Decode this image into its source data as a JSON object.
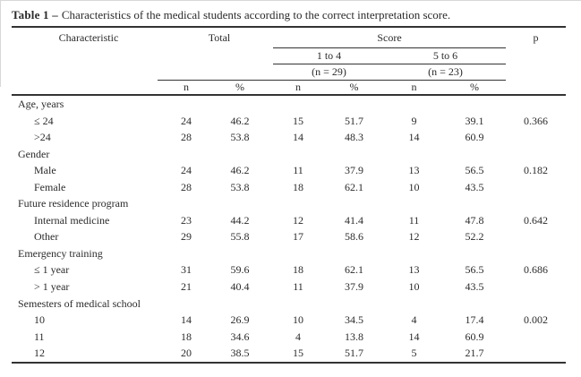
{
  "page": {
    "background": "#ffffff",
    "edge_border_color": "#d8d8d8",
    "rule_color": "#333333",
    "text_color": "#2b2b2b"
  },
  "title": {
    "label_bold": "Table 1 –",
    "text": "Characteristics of the medical students according to the correct interpretation score."
  },
  "table": {
    "header": {
      "characteristic": "Characteristic",
      "total": "Total",
      "score": "Score",
      "p": "p",
      "score_columns": [
        {
          "range": "1 to 4",
          "n": "(n = 29)"
        },
        {
          "range": "5 to 6",
          "n": "(n = 23)"
        }
      ],
      "subheaders": [
        "n",
        "%",
        "n",
        "%",
        "n",
        "%"
      ]
    },
    "groups": [
      {
        "label": "Age, years",
        "rows": [
          {
            "label": "≤ 24",
            "total_n": "24",
            "total_pct": "46.2",
            "s14_n": "15",
            "s14_pct": "51.7",
            "s56_n": "9",
            "s56_pct": "39.1",
            "p": "0.366"
          },
          {
            "label": ">24",
            "total_n": "28",
            "total_pct": "53.8",
            "s14_n": "14",
            "s14_pct": "48.3",
            "s56_n": "14",
            "s56_pct": "60.9",
            "p": ""
          }
        ]
      },
      {
        "label": "Gender",
        "rows": [
          {
            "label": "Male",
            "total_n": "24",
            "total_pct": "46.2",
            "s14_n": "11",
            "s14_pct": "37.9",
            "s56_n": "13",
            "s56_pct": "56.5",
            "p": "0.182"
          },
          {
            "label": "Female",
            "total_n": "28",
            "total_pct": "53.8",
            "s14_n": "18",
            "s14_pct": "62.1",
            "s56_n": "10",
            "s56_pct": "43.5",
            "p": ""
          }
        ]
      },
      {
        "label": "Future residence program",
        "rows": [
          {
            "label": "Internal medicine",
            "total_n": "23",
            "total_pct": "44.2",
            "s14_n": "12",
            "s14_pct": "41.4",
            "s56_n": "11",
            "s56_pct": "47.8",
            "p": "0.642"
          },
          {
            "label": "Other",
            "total_n": "29",
            "total_pct": "55.8",
            "s14_n": "17",
            "s14_pct": "58.6",
            "s56_n": "12",
            "s56_pct": "52.2",
            "p": ""
          }
        ]
      },
      {
        "label": "Emergency training",
        "rows": [
          {
            "label": "≤ 1 year",
            "total_n": "31",
            "total_pct": "59.6",
            "s14_n": "18",
            "s14_pct": "62.1",
            "s56_n": "13",
            "s56_pct": "56.5",
            "p": "0.686"
          },
          {
            "label": "> 1 year",
            "total_n": "21",
            "total_pct": "40.4",
            "s14_n": "11",
            "s14_pct": "37.9",
            "s56_n": "10",
            "s56_pct": "43.5",
            "p": ""
          }
        ]
      },
      {
        "label": "Semesters of medical school",
        "rows": [
          {
            "label": "10",
            "total_n": "14",
            "total_pct": "26.9",
            "s14_n": "10",
            "s14_pct": "34.5",
            "s56_n": "4",
            "s56_pct": "17.4",
            "p": "0.002"
          },
          {
            "label": "11",
            "total_n": "18",
            "total_pct": "34.6",
            "s14_n": "4",
            "s14_pct": "13.8",
            "s56_n": "14",
            "s56_pct": "60.9",
            "p": ""
          },
          {
            "label": "12",
            "total_n": "20",
            "total_pct": "38.5",
            "s14_n": "15",
            "s14_pct": "51.7",
            "s56_n": "5",
            "s56_pct": "21.7",
            "p": ""
          }
        ]
      }
    ]
  }
}
